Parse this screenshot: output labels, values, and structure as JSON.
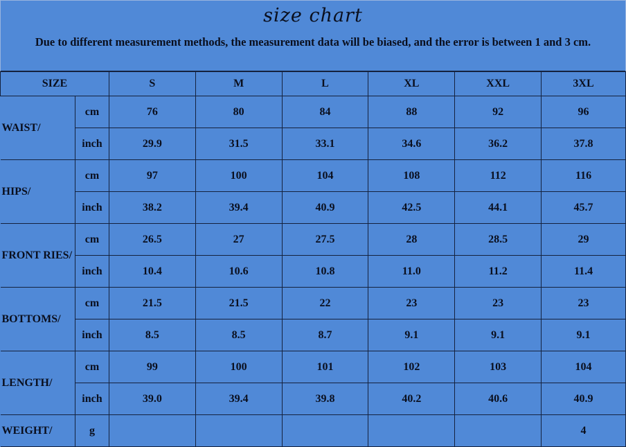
{
  "title": "size chart",
  "note": "Due to different measurement methods, the measurement data will be biased, and the error is between 1 and 3 cm.",
  "header": {
    "label": "SIZE",
    "sizes": [
      "S",
      "M",
      "L",
      "XL",
      "XXL",
      "3XL"
    ]
  },
  "rows": [
    {
      "label": "WAIST/",
      "units": [
        {
          "unit": "cm",
          "values": [
            "76",
            "80",
            "84",
            "88",
            "92",
            "96"
          ]
        },
        {
          "unit": "inch",
          "values": [
            "29.9",
            "31.5",
            "33.1",
            "34.6",
            "36.2",
            "37.8"
          ]
        }
      ]
    },
    {
      "label": "HIPS/",
      "units": [
        {
          "unit": "cm",
          "values": [
            "97",
            "100",
            "104",
            "108",
            "112",
            "116"
          ]
        },
        {
          "unit": "inch",
          "values": [
            "38.2",
            "39.4",
            "40.9",
            "42.5",
            "44.1",
            "45.7"
          ]
        }
      ]
    },
    {
      "label": "FRONT RIES/",
      "units": [
        {
          "unit": "cm",
          "values": [
            "26.5",
            "27",
            "27.5",
            "28",
            "28.5",
            "29"
          ]
        },
        {
          "unit": "inch",
          "values": [
            "10.4",
            "10.6",
            "10.8",
            "11.0",
            "11.2",
            "11.4"
          ]
        }
      ]
    },
    {
      "label": "BOTTOMS/",
      "units": [
        {
          "unit": "cm",
          "values": [
            "21.5",
            "21.5",
            "22",
            "23",
            "23",
            "23"
          ]
        },
        {
          "unit": "inch",
          "values": [
            "8.5",
            "8.5",
            "8.7",
            "9.1",
            "9.1",
            "9.1"
          ]
        }
      ]
    },
    {
      "label": "LENGTH/",
      "units": [
        {
          "unit": "cm",
          "values": [
            "99",
            "100",
            "101",
            "102",
            "103",
            "104"
          ]
        },
        {
          "unit": "inch",
          "values": [
            "39.0",
            "39.4",
            "39.8",
            "40.2",
            "40.6",
            "40.9"
          ]
        }
      ]
    }
  ],
  "weight": {
    "label": "WEIGHT/",
    "unit": "g",
    "values": [
      "",
      "",
      "",
      "",
      "",
      "4"
    ]
  }
}
